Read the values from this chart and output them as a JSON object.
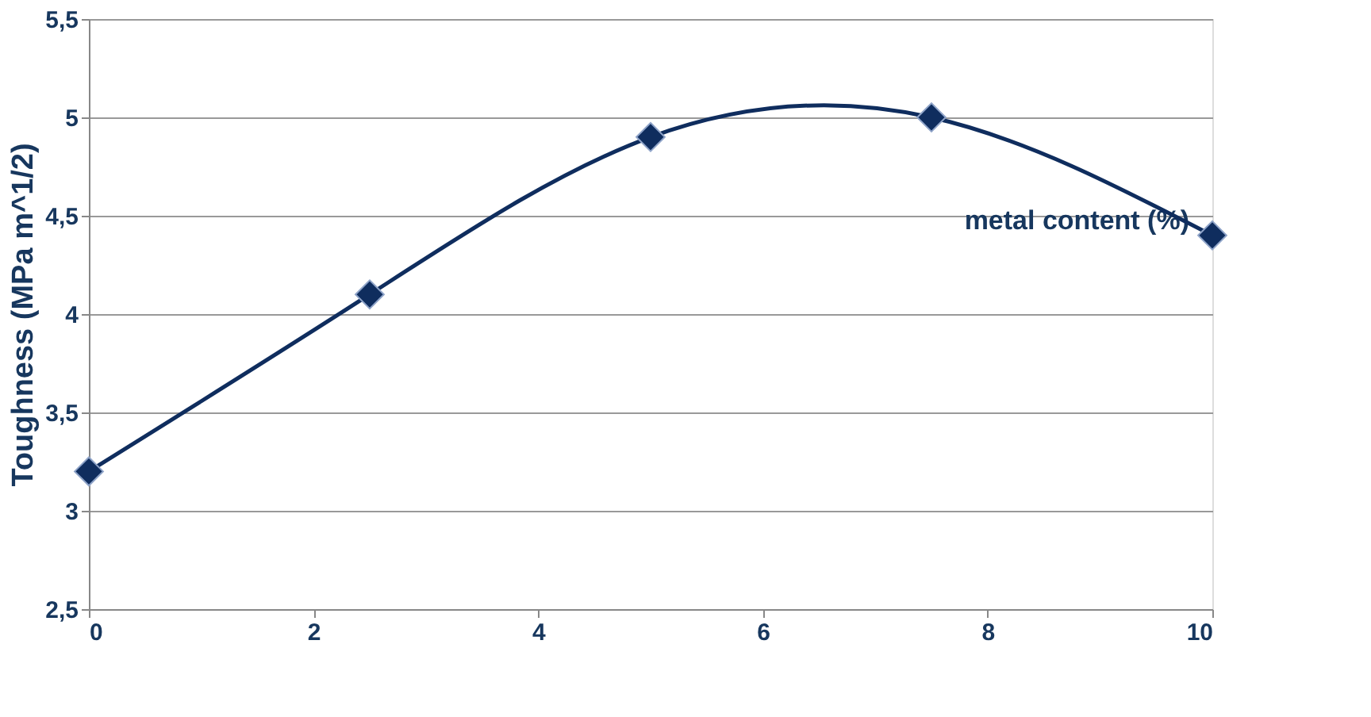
{
  "chart_data": {
    "type": "line",
    "xlabel": "metal content (%)",
    "ylabel": "Toughness (MPa m^1/2)",
    "x": [
      0,
      2.5,
      5,
      7.5,
      10
    ],
    "series": [
      {
        "color": "#0f2d5e",
        "values": [
          3.2,
          4.1,
          4.9,
          5.0,
          4.4
        ]
      }
    ],
    "xlim": [
      0,
      10
    ],
    "xticks": [
      0,
      2,
      4,
      6,
      8,
      10
    ],
    "ylim": [
      2.5,
      5.5
    ],
    "yticks": [
      {
        "value": 2.5,
        "label": "2,5"
      },
      3,
      {
        "value": 3.5,
        "label": "3,5"
      },
      4,
      {
        "value": 4.5,
        "label": "4,5"
      },
      5,
      {
        "value": 5.5,
        "label": "5,5"
      }
    ],
    "grid": "y",
    "marker": "diamond",
    "line_style": "solid"
  }
}
